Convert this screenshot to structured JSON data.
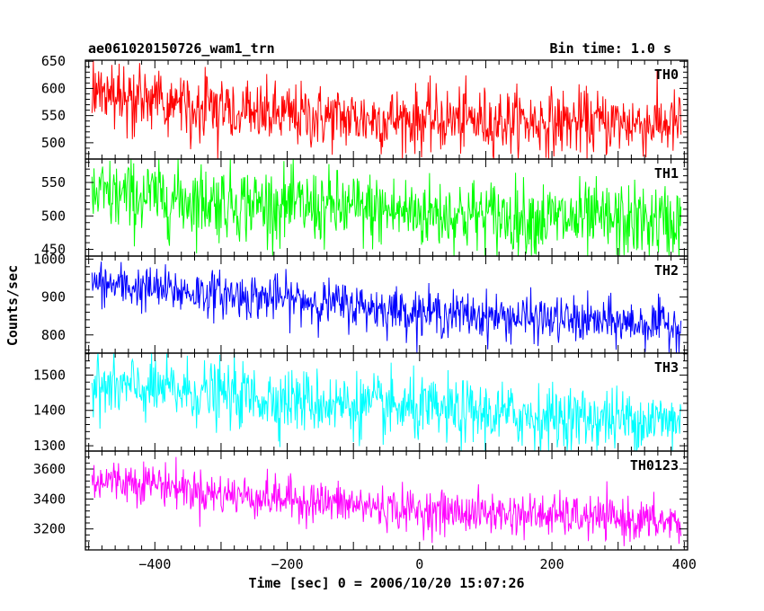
{
  "header": {
    "title": "ae061020150726_wam1_trn",
    "bin_time": "Bin time: 1.0 s"
  },
  "chart_data": {
    "type": "line",
    "xlabel": "Time [sec] 0 = 2006/10/20 15:07:26",
    "ylabel": "Counts/sec",
    "xlim": [
      -505,
      405
    ],
    "x_ticks": [
      -400,
      -200,
      0,
      200,
      400
    ],
    "time_range": [
      -495,
      395
    ],
    "time_step": 1.0,
    "grid": false,
    "panels": [
      {
        "name": "TH0",
        "color": "#ff0000",
        "ylim": [
          470,
          652
        ],
        "y_ticks": [
          500,
          550,
          600,
          650
        ],
        "trend": [
          [
            -495,
            585
          ],
          [
            -440,
            585
          ],
          [
            -380,
            575
          ],
          [
            -300,
            555
          ],
          [
            -100,
            545
          ],
          [
            100,
            540
          ],
          [
            395,
            535
          ]
        ],
        "noise_sd": 30
      },
      {
        "name": "TH1",
        "color": "#00ff00",
        "ylim": [
          440,
          585
        ],
        "y_ticks": [
          450,
          500,
          550
        ],
        "trend": [
          [
            -495,
            530
          ],
          [
            -400,
            528
          ],
          [
            -200,
            515
          ],
          [
            0,
            505
          ],
          [
            200,
            495
          ],
          [
            395,
            490
          ]
        ],
        "noise_sd": 28
      },
      {
        "name": "TH2",
        "color": "#0000ff",
        "ylim": [
          752,
          1008
        ],
        "y_ticks": [
          800,
          900,
          1000
        ],
        "trend": [
          [
            -495,
            935
          ],
          [
            -400,
            920
          ],
          [
            -200,
            895
          ],
          [
            0,
            860
          ],
          [
            200,
            840
          ],
          [
            395,
            825
          ]
        ],
        "noise_sd": 30
      },
      {
        "name": "TH3",
        "color": "#00ffff",
        "ylim": [
          1285,
          1562
        ],
        "y_ticks": [
          1300,
          1400,
          1500
        ],
        "trend": [
          [
            -495,
            1465
          ],
          [
            -400,
            1460
          ],
          [
            -200,
            1430
          ],
          [
            0,
            1400
          ],
          [
            200,
            1380
          ],
          [
            395,
            1370
          ]
        ],
        "noise_sd": 45
      },
      {
        "name": "TH0123",
        "color": "#ff00ff",
        "ylim": [
          3060,
          3720
        ],
        "y_ticks": [
          3200,
          3400,
          3600
        ],
        "trend": [
          [
            -495,
            3530
          ],
          [
            -400,
            3510
          ],
          [
            -320,
            3440
          ],
          [
            -200,
            3400
          ],
          [
            0,
            3320
          ],
          [
            200,
            3290
          ],
          [
            395,
            3240
          ]
        ],
        "noise_sd": 70
      }
    ]
  }
}
